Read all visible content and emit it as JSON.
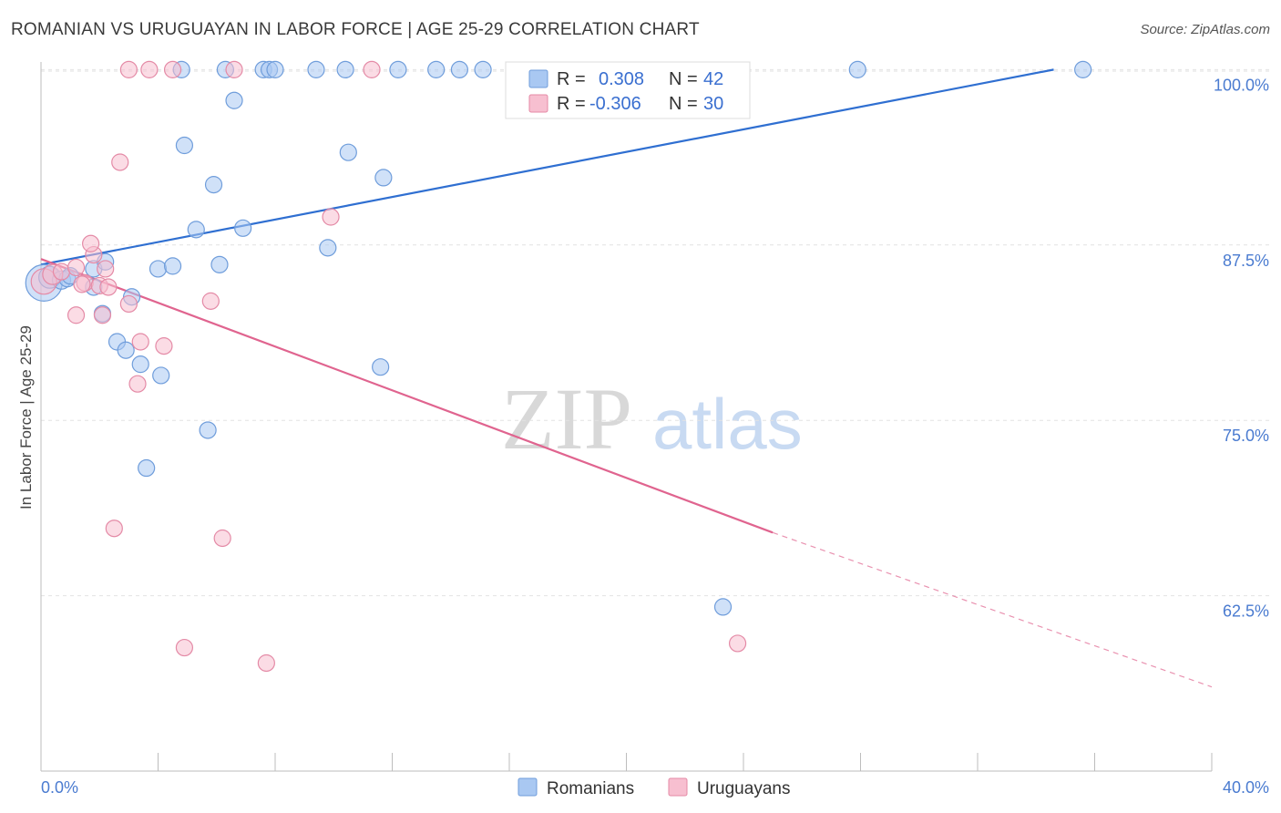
{
  "chart_data": {
    "type": "scatter",
    "title": "ROMANIAN VS URUGUAYAN IN LABOR FORCE | AGE 25-29 CORRELATION CHART",
    "source": "Source: ZipAtlas.com",
    "xlabel": "",
    "ylabel": "In Labor Force | Age 25-29",
    "xlim": [
      0,
      40
    ],
    "ylim": [
      50,
      101
    ],
    "x_tick_labels": [
      "0.0%",
      "40.0%"
    ],
    "y_ticks": [
      62.5,
      75.0,
      87.5,
      100.0
    ],
    "y_tick_labels": [
      "62.5%",
      "75.0%",
      "87.5%",
      "100.0%"
    ],
    "watermark": {
      "zip": "ZIP",
      "atlas": "atlas"
    },
    "legend": {
      "r_label": "R =",
      "n_label": "N =",
      "entries": [
        {
          "name": "Romanians",
          "r": "0.308",
          "n": "42",
          "color": "#a9c8f2",
          "stroke": "#6f9ddb"
        },
        {
          "name": "Uruguayans",
          "r": "-0.306",
          "n": "30",
          "color": "#f7bfd0",
          "stroke": "#e48aa6"
        }
      ]
    },
    "series": [
      {
        "name": "Romanians",
        "color": "#a9c8f2",
        "stroke": "#6f9ddb",
        "trend": {
          "x0": 0,
          "y0": 86.1,
          "x1": 34.6,
          "y1": 100.0,
          "color": "#2f6fd1",
          "dashed_to": null
        },
        "points": [
          [
            0.1,
            84.8,
            20
          ],
          [
            0.3,
            85.2,
            12
          ],
          [
            0.7,
            85.0,
            10
          ],
          [
            1.8,
            85.8,
            9
          ],
          [
            0.9,
            85.1,
            9
          ],
          [
            2.2,
            86.3,
            9
          ],
          [
            1.8,
            84.5,
            9
          ],
          [
            3.1,
            83.8,
            9
          ],
          [
            2.1,
            82.6,
            9
          ],
          [
            2.6,
            80.6,
            9
          ],
          [
            2.9,
            80.0,
            9
          ],
          [
            3.4,
            79.0,
            9
          ],
          [
            4.1,
            78.2,
            9
          ],
          [
            5.7,
            74.3,
            9
          ],
          [
            3.6,
            71.6,
            9
          ],
          [
            4.0,
            85.8,
            9
          ],
          [
            4.5,
            86.0,
            9
          ],
          [
            6.1,
            86.1,
            9
          ],
          [
            5.3,
            88.6,
            9
          ],
          [
            6.9,
            88.7,
            9
          ],
          [
            5.9,
            91.8,
            9
          ],
          [
            4.9,
            94.6,
            9
          ],
          [
            6.6,
            97.8,
            9
          ],
          [
            9.8,
            87.3,
            9
          ],
          [
            10.5,
            94.1,
            9
          ],
          [
            11.7,
            92.3,
            9
          ],
          [
            11.6,
            78.8,
            9
          ],
          [
            4.8,
            100.0,
            9
          ],
          [
            6.3,
            100.0,
            9
          ],
          [
            7.6,
            100.0,
            9
          ],
          [
            7.8,
            100.0,
            9
          ],
          [
            8.0,
            100.0,
            9
          ],
          [
            9.4,
            100.0,
            9
          ],
          [
            10.4,
            100.0,
            9
          ],
          [
            12.2,
            100.0,
            9
          ],
          [
            13.5,
            100.0,
            9
          ],
          [
            14.3,
            100.0,
            9
          ],
          [
            15.1,
            100.0,
            9
          ],
          [
            27.9,
            100.0,
            9
          ],
          [
            35.6,
            100.0,
            9
          ],
          [
            23.3,
            61.7,
            9
          ],
          [
            1.0,
            85.3,
            9
          ]
        ]
      },
      {
        "name": "Uruguayans",
        "color": "#f7bfd0",
        "stroke": "#e48aa6",
        "trend": {
          "x0": 0,
          "y0": 86.5,
          "x1": 25.0,
          "y1": 67.0,
          "color": "#e0648f",
          "dashed_to": [
            40.0,
            56.0
          ]
        },
        "points": [
          [
            0.1,
            84.9,
            14
          ],
          [
            0.4,
            85.4,
            11
          ],
          [
            0.7,
            85.6,
            9
          ],
          [
            1.2,
            85.9,
            9
          ],
          [
            1.5,
            84.8,
            9
          ],
          [
            1.8,
            86.8,
            9
          ],
          [
            2.0,
            84.6,
            9
          ],
          [
            2.2,
            85.8,
            9
          ],
          [
            1.7,
            87.6,
            9
          ],
          [
            2.3,
            84.5,
            9
          ],
          [
            1.2,
            82.5,
            9
          ],
          [
            2.1,
            82.5,
            9
          ],
          [
            3.0,
            83.3,
            9
          ],
          [
            5.8,
            83.5,
            9
          ],
          [
            3.4,
            80.6,
            9
          ],
          [
            4.2,
            80.3,
            9
          ],
          [
            3.3,
            77.6,
            9
          ],
          [
            2.7,
            93.4,
            9
          ],
          [
            9.9,
            89.5,
            9
          ],
          [
            2.5,
            67.3,
            9
          ],
          [
            6.2,
            66.6,
            9
          ],
          [
            4.9,
            58.8,
            9
          ],
          [
            7.7,
            57.7,
            9
          ],
          [
            23.8,
            59.1,
            9
          ],
          [
            3.0,
            100.0,
            9
          ],
          [
            3.7,
            100.0,
            9
          ],
          [
            4.5,
            100.0,
            9
          ],
          [
            6.6,
            100.0,
            9
          ],
          [
            11.3,
            100.0,
            9
          ],
          [
            1.4,
            84.7,
            9
          ]
        ]
      }
    ]
  }
}
